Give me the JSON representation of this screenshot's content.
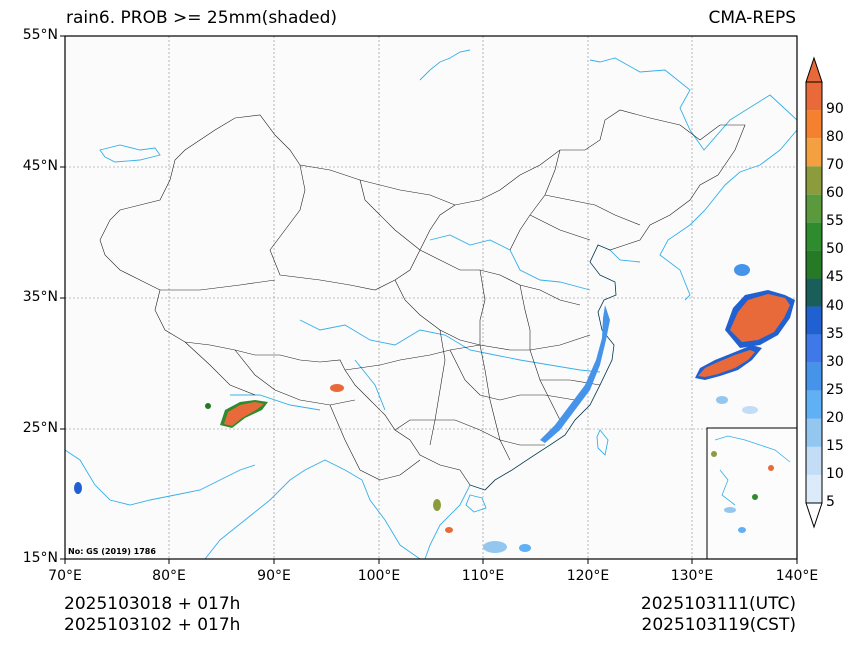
{
  "header": {
    "title": "rain6. PROB >= 25mm(shaded)",
    "source": "CMA-REPS"
  },
  "axes": {
    "lat_ticks": [
      "55°N",
      "45°N",
      "35°N",
      "25°N",
      "15°N"
    ],
    "lon_ticks": [
      "70°E",
      "80°E",
      "90°E",
      "100°E",
      "110°E",
      "120°E",
      "130°E",
      "140°E"
    ],
    "lat_range": [
      15,
      55
    ],
    "lon_range": [
      70,
      140
    ]
  },
  "colorbar": {
    "levels": [
      "5",
      "10",
      "15",
      "20",
      "25",
      "30",
      "35",
      "40",
      "45",
      "50",
      "55",
      "60",
      "70",
      "80",
      "90"
    ],
    "colors": [
      "#dcebfa",
      "#c2ddf5",
      "#94c7f0",
      "#5fb0f5",
      "#4694ea",
      "#3f78e8",
      "#2060d0",
      "#1a5e5a",
      "#267a26",
      "#2e8c2e",
      "#5a9a3c",
      "#8c9c3c",
      "#f4a040",
      "#f48030",
      "#e86a3a"
    ]
  },
  "footer": {
    "init_utc": "2025103018  +  017h",
    "init_cst": "2025103102  +  017h",
    "valid_utc": "2025103111(UTC)",
    "valid_cst": "2025103119(CST)"
  },
  "watermark": "No: GS (2019) 1786",
  "map": {
    "regions": [
      {
        "name": "east-sea-band",
        "lon": 131.5,
        "lat": 29.5,
        "max": 90
      },
      {
        "name": "east-sea-core",
        "lon": 135.5,
        "lat": 32.5,
        "max": 90
      },
      {
        "name": "himalaya-cell",
        "lon": 86,
        "lat": 26.5,
        "max": 90
      },
      {
        "name": "burma-cell",
        "lon": 96.5,
        "lat": 28,
        "max": 90
      }
    ]
  }
}
